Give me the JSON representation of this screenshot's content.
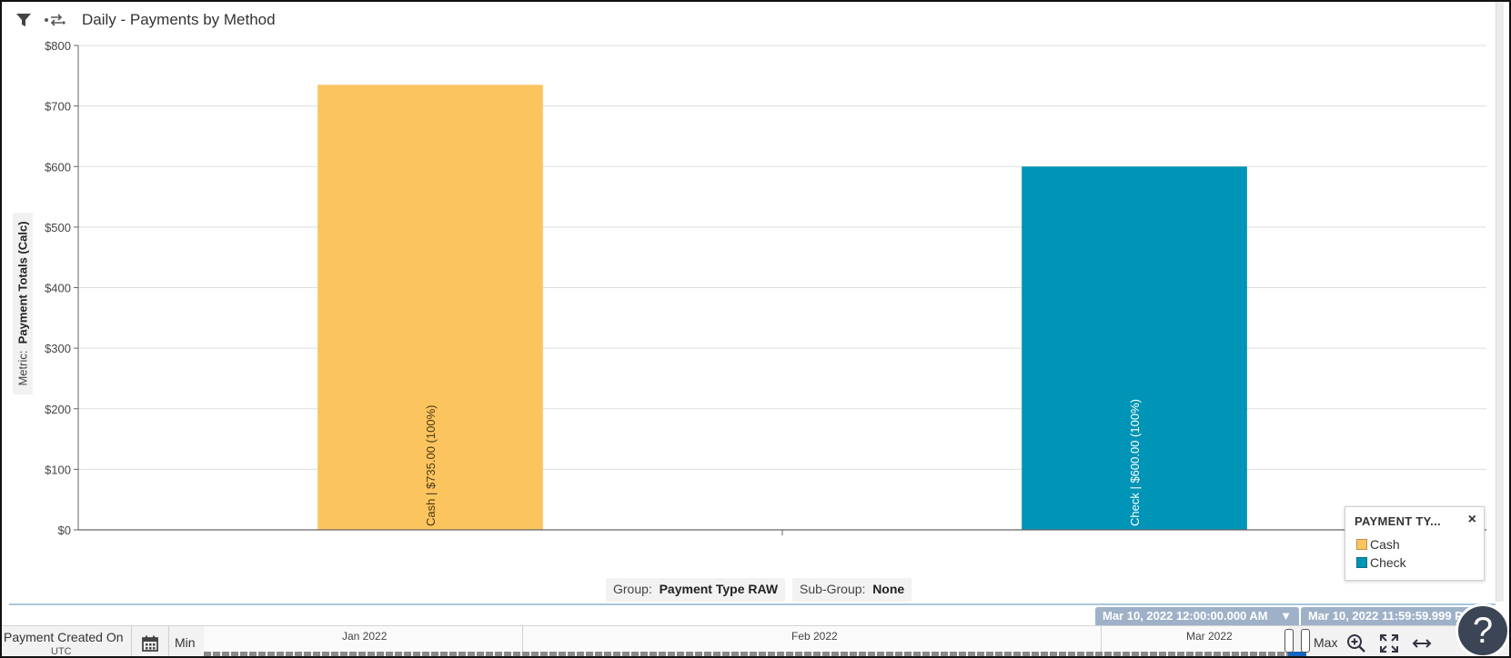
{
  "toolbar": {
    "filter_icon": "filter-icon",
    "swap_icon": "swap-arrows-icon",
    "title": "Daily - Payments by Method"
  },
  "metric": {
    "prefix": "Metric:",
    "name": "Payment Totals (Calc)"
  },
  "grouping": {
    "group_prefix": "Group:",
    "group_value": "Payment Type RAW",
    "subgroup_prefix": "Sub-Group:",
    "subgroup_value": "None"
  },
  "legend": {
    "title": "PAYMENT TY...",
    "close": "×",
    "items": [
      {
        "label": "Cash",
        "color": "#fcc45f"
      },
      {
        "label": "Check",
        "color": "#0094b6"
      }
    ]
  },
  "chart_data": {
    "type": "bar",
    "categories": [
      "Cash",
      "Check"
    ],
    "values": [
      735,
      600
    ],
    "bar_labels": [
      "Cash | $735.00 (100%)",
      "Check | $600.00 (100%)"
    ],
    "colors": [
      "#fcc45f",
      "#0094b6"
    ],
    "ylim": [
      0,
      800
    ],
    "yticks": [
      0,
      100,
      200,
      300,
      400,
      500,
      600,
      700,
      800
    ],
    "ytick_labels": [
      "$0",
      "$100",
      "$200",
      "$300",
      "$400",
      "$500",
      "$600",
      "$700",
      "$800"
    ],
    "ylabel": "Payment Totals (Calc)",
    "grid": true,
    "legend_position": "bottom-right"
  },
  "timeline": {
    "field_label": "Payment Created On",
    "timezone": "UTC",
    "min_label": "Min",
    "max_label": "Max",
    "months": [
      "Jan 2022",
      "Feb 2022",
      "Mar 2022"
    ],
    "range_start": "Mar 10, 2022 12:00:00.000 AM",
    "range_end": "Mar 10, 2022 11:59:59.999 P",
    "calendar_icon": "calendar-icon",
    "zoom_icon": "zoom-in-icon",
    "fit_icon": "fit-to-screen-icon",
    "expand_icon": "expand-horizontal-icon"
  },
  "help": {
    "label": "?"
  }
}
